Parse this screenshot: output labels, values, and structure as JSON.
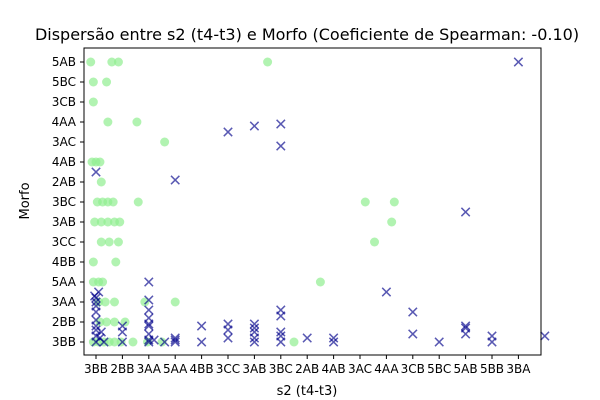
{
  "chart_data": {
    "type": "scatter",
    "title": "Dispersão entre s2 (t4-t3) e Morfo (Coeficiente de Spearman: -0.10)",
    "xlabel": "s2 (t4-t3)",
    "ylabel": "Morfo",
    "x_categories": [
      "3BB",
      "2BB",
      "3AA",
      "5AA",
      "4BB",
      "3CC",
      "3AB",
      "3BC",
      "2AB",
      "4AB",
      "3AC",
      "4AA",
      "3CB",
      "5BC",
      "5AB",
      "5BB",
      "3BA"
    ],
    "x_tick_labels": [
      "3BB",
      "2BB",
      "3AA",
      "5AA",
      "4BB",
      "3CC",
      "3AB",
      "3BC",
      "2AB",
      "4AB",
      "3AC",
      "4AA",
      "3CB",
      "5BC",
      "5AB",
      "5BB",
      "3BA"
    ],
    "y_categories": [
      "3BB",
      "2BB",
      "3AA",
      "5AA",
      "4BB",
      "3CC",
      "3AB",
      "3BC",
      "2AB",
      "4AB",
      "3AC",
      "4AA",
      "3CB",
      "5BC",
      "5AB"
    ],
    "grid": false,
    "legend": "none",
    "colors": {
      "series_1": "#90ee90",
      "series_2": "#00008b"
    },
    "series": [
      {
        "marker": "circle",
        "points": [
          {
            "x": -0.2,
            "y": 14
          },
          {
            "x": 0.6,
            "y": 14
          },
          {
            "x": 0.85,
            "y": 14
          },
          {
            "x": -0.1,
            "y": 13
          },
          {
            "x": 0.4,
            "y": 13
          },
          {
            "x": -0.1,
            "y": 12
          },
          {
            "x": 0.45,
            "y": 11
          },
          {
            "x": 1.55,
            "y": 11
          },
          {
            "x": 2.6,
            "y": 10
          },
          {
            "x": -0.15,
            "y": 9
          },
          {
            "x": 0.0,
            "y": 9
          },
          {
            "x": 0.15,
            "y": 9
          },
          {
            "x": 0.2,
            "y": 8
          },
          {
            "x": 0.05,
            "y": 7
          },
          {
            "x": 0.25,
            "y": 7
          },
          {
            "x": 0.45,
            "y": 7
          },
          {
            "x": 0.65,
            "y": 7
          },
          {
            "x": 1.6,
            "y": 7
          },
          {
            "x": -0.05,
            "y": 6
          },
          {
            "x": 0.2,
            "y": 6
          },
          {
            "x": 0.45,
            "y": 6
          },
          {
            "x": 0.7,
            "y": 6
          },
          {
            "x": 0.9,
            "y": 6
          },
          {
            "x": 0.2,
            "y": 5
          },
          {
            "x": 0.5,
            "y": 5
          },
          {
            "x": 0.85,
            "y": 5
          },
          {
            "x": -0.1,
            "y": 4
          },
          {
            "x": 0.75,
            "y": 4
          },
          {
            "x": -0.1,
            "y": 3
          },
          {
            "x": 0.1,
            "y": 3
          },
          {
            "x": 0.25,
            "y": 3
          },
          {
            "x": 0.1,
            "y": 2
          },
          {
            "x": 0.35,
            "y": 2
          },
          {
            "x": 0.7,
            "y": 2
          },
          {
            "x": 1.85,
            "y": 2
          },
          {
            "x": 3.0,
            "y": 2
          },
          {
            "x": 0.15,
            "y": 1
          },
          {
            "x": 0.4,
            "y": 1
          },
          {
            "x": 0.7,
            "y": 1
          },
          {
            "x": 1.1,
            "y": 1
          },
          {
            "x": -0.1,
            "y": 0
          },
          {
            "x": 0.1,
            "y": 0
          },
          {
            "x": 0.3,
            "y": 0
          },
          {
            "x": 0.5,
            "y": 0
          },
          {
            "x": 0.7,
            "y": 0
          },
          {
            "x": 0.95,
            "y": 0
          },
          {
            "x": 1.4,
            "y": 0
          },
          {
            "x": 1.95,
            "y": 0
          },
          {
            "x": 2.5,
            "y": 0
          },
          {
            "x": 6.5,
            "y": 14
          },
          {
            "x": 8.5,
            "y": 3
          },
          {
            "x": 10.2,
            "y": 7
          },
          {
            "x": 10.55,
            "y": 5
          },
          {
            "x": 11.3,
            "y": 7
          },
          {
            "x": 11.2,
            "y": 6
          },
          {
            "x": 7.5,
            "y": 0
          }
        ]
      },
      {
        "marker": "x",
        "points": [
          {
            "x": 0.0,
            "y": 8.5
          },
          {
            "x": 3.0,
            "y": 8.1
          },
          {
            "x": 5.0,
            "y": 10.5
          },
          {
            "x": 6.0,
            "y": 10.8
          },
          {
            "x": 7.0,
            "y": 10.9
          },
          {
            "x": 7.0,
            "y": 9.8
          },
          {
            "x": 14.0,
            "y": 6.5
          },
          {
            "x": 16.0,
            "y": 14
          },
          {
            "x": 2.0,
            "y": 3
          },
          {
            "x": 2.0,
            "y": 2.1
          },
          {
            "x": 2.0,
            "y": 1.6
          },
          {
            "x": 2.0,
            "y": 1.2
          },
          {
            "x": 2.0,
            "y": 0.8
          },
          {
            "x": 2.0,
            "y": 0.4
          },
          {
            "x": 2.0,
            "y": 0.1
          },
          {
            "x": 11.0,
            "y": 2.5
          },
          {
            "x": 12.0,
            "y": 1.5
          },
          {
            "x": 12.0,
            "y": 0.4
          },
          {
            "x": 7.0,
            "y": 1.6
          },
          {
            "x": 7.0,
            "y": 1.3
          },
          {
            "x": 7.0,
            "y": 0.5
          },
          {
            "x": 7.0,
            "y": 0.3
          },
          {
            "x": 7.0,
            "y": 0.0
          },
          {
            "x": 8.0,
            "y": 0.2
          },
          {
            "x": 9.0,
            "y": 0.2
          },
          {
            "x": 9.0,
            "y": 0.0
          },
          {
            "x": 13.0,
            "y": 0.0
          },
          {
            "x": 14.0,
            "y": 0.4
          },
          {
            "x": 14.0,
            "y": 0.7
          },
          {
            "x": 14.0,
            "y": 0.8
          },
          {
            "x": 15.0,
            "y": 0.0
          },
          {
            "x": 15.0,
            "y": 0.3
          },
          {
            "x": 17.0,
            "y": 0.3
          },
          {
            "x": -0.05,
            "y": 2.3
          },
          {
            "x": 0.0,
            "y": 2.2
          },
          {
            "x": 0.0,
            "y": 2.0
          },
          {
            "x": 0.0,
            "y": 1.8
          },
          {
            "x": 0.0,
            "y": 1.5
          },
          {
            "x": 0.0,
            "y": 1.1
          },
          {
            "x": 0.0,
            "y": 0.8
          },
          {
            "x": 0.0,
            "y": 0.6
          },
          {
            "x": 0.0,
            "y": 0.3
          },
          {
            "x": 0.0,
            "y": 0.0
          },
          {
            "x": 0.1,
            "y": 2.5
          },
          {
            "x": 0.2,
            "y": 0.5
          },
          {
            "x": 0.15,
            "y": 0.2
          },
          {
            "x": 0.3,
            "y": 0.0
          },
          {
            "x": 1.0,
            "y": 0.8
          },
          {
            "x": 1.0,
            "y": 0.5
          },
          {
            "x": 1.0,
            "y": 0.0
          },
          {
            "x": 2.0,
            "y": 0.9
          },
          {
            "x": 2.0,
            "y": 0.0
          },
          {
            "x": 2.2,
            "y": 0.1
          },
          {
            "x": 2.6,
            "y": 0.0
          },
          {
            "x": 3.0,
            "y": 0.2
          },
          {
            "x": 3.0,
            "y": 0.1
          },
          {
            "x": 3.0,
            "y": 0.0
          },
          {
            "x": 4.0,
            "y": 0.8
          },
          {
            "x": 4.0,
            "y": 0.0
          },
          {
            "x": 5.0,
            "y": 0.9
          },
          {
            "x": 5.0,
            "y": 0.6
          },
          {
            "x": 5.0,
            "y": 0.2
          },
          {
            "x": 6.0,
            "y": 0.9
          },
          {
            "x": 6.0,
            "y": 0.7
          },
          {
            "x": 6.0,
            "y": 0.5
          },
          {
            "x": 6.0,
            "y": 0.2
          },
          {
            "x": 6.0,
            "y": 0.0
          }
        ]
      }
    ]
  }
}
